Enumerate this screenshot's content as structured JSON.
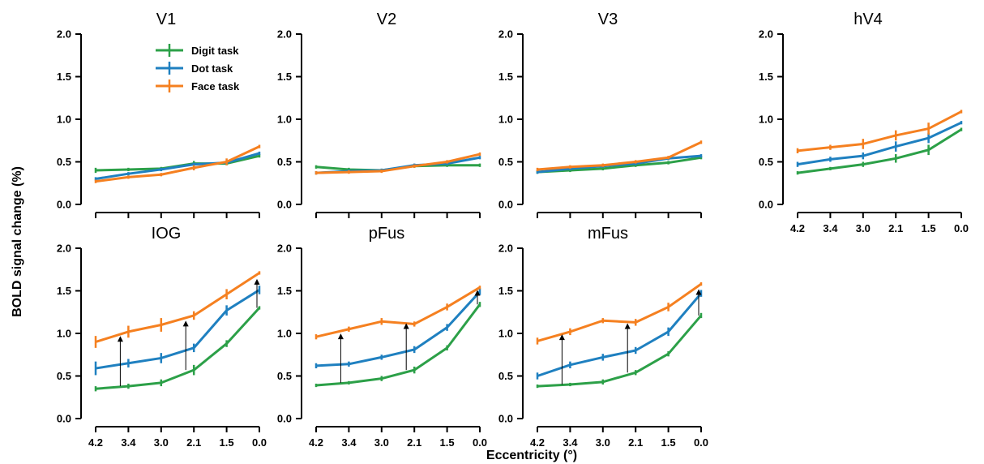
{
  "figure": {
    "ylabel": "BOLD signal change (%)",
    "xlabel": "Eccentricity (°)"
  },
  "legend": [
    {
      "name": "Digit task",
      "color": "#2ca048"
    },
    {
      "name": "Dot task",
      "color": "#1f80c0"
    },
    {
      "name": "Face task",
      "color": "#f58020"
    }
  ],
  "chart_data": [
    {
      "type": "line",
      "title": "V1",
      "categories": [
        "4.2",
        "3.4",
        "3.0",
        "2.1",
        "1.5",
        "0.0"
      ],
      "ylim": [
        0,
        2
      ],
      "yticks": [
        "0.0",
        "0.5",
        "1.0",
        "1.5",
        "2.0"
      ],
      "show_x_ticklabels": false,
      "legend": true,
      "series": [
        {
          "name": "Digit task",
          "color": "#2ca048",
          "values": [
            0.4,
            0.41,
            0.42,
            0.48,
            0.48,
            0.57
          ],
          "errors": [
            0.03,
            0.02,
            0.02,
            0.03,
            0.02,
            0.02
          ]
        },
        {
          "name": "Dot task",
          "color": "#1f80c0",
          "values": [
            0.3,
            0.36,
            0.41,
            0.47,
            0.49,
            0.6
          ],
          "errors": [
            0.02,
            0.02,
            0.02,
            0.02,
            0.02,
            0.02
          ]
        },
        {
          "name": "Face task",
          "color": "#f58020",
          "values": [
            0.27,
            0.32,
            0.35,
            0.43,
            0.5,
            0.68
          ],
          "errors": [
            0.02,
            0.02,
            0.02,
            0.03,
            0.04,
            0.02
          ]
        }
      ]
    },
    {
      "type": "line",
      "title": "V2",
      "categories": [
        "4.2",
        "3.4",
        "3.0",
        "2.1",
        "1.5",
        "0.0"
      ],
      "ylim": [
        0,
        2
      ],
      "yticks": [
        "0.0",
        "0.5",
        "1.0",
        "1.5",
        "2.0"
      ],
      "show_x_ticklabels": false,
      "legend": false,
      "series": [
        {
          "name": "Digit task",
          "color": "#2ca048",
          "values": [
            0.44,
            0.41,
            0.4,
            0.45,
            0.46,
            0.46
          ],
          "errors": [
            0.02,
            0.02,
            0.02,
            0.02,
            0.02,
            0.02
          ]
        },
        {
          "name": "Dot task",
          "color": "#1f80c0",
          "values": [
            0.37,
            0.39,
            0.4,
            0.46,
            0.48,
            0.55
          ],
          "errors": [
            0.02,
            0.02,
            0.02,
            0.02,
            0.02,
            0.02
          ]
        },
        {
          "name": "Face task",
          "color": "#f58020",
          "values": [
            0.37,
            0.38,
            0.39,
            0.45,
            0.5,
            0.59
          ],
          "errors": [
            0.02,
            0.02,
            0.02,
            0.02,
            0.02,
            0.02
          ]
        }
      ]
    },
    {
      "type": "line",
      "title": "V3",
      "categories": [
        "4.2",
        "3.4",
        "3.0",
        "2.1",
        "1.5",
        "0.0"
      ],
      "ylim": [
        0,
        2
      ],
      "yticks": [
        "0.0",
        "0.5",
        "1.0",
        "1.5",
        "2.0"
      ],
      "show_x_ticklabels": false,
      "legend": false,
      "series": [
        {
          "name": "Digit task",
          "color": "#2ca048",
          "values": [
            0.38,
            0.4,
            0.42,
            0.46,
            0.49,
            0.55
          ],
          "errors": [
            0.02,
            0.02,
            0.02,
            0.02,
            0.02,
            0.02
          ]
        },
        {
          "name": "Dot task",
          "color": "#1f80c0",
          "values": [
            0.38,
            0.42,
            0.45,
            0.48,
            0.54,
            0.57
          ],
          "errors": [
            0.02,
            0.02,
            0.02,
            0.02,
            0.02,
            0.02
          ]
        },
        {
          "name": "Face task",
          "color": "#f58020",
          "values": [
            0.41,
            0.44,
            0.46,
            0.5,
            0.55,
            0.73
          ],
          "errors": [
            0.02,
            0.02,
            0.02,
            0.02,
            0.02,
            0.02
          ]
        }
      ]
    },
    {
      "type": "line",
      "title": "hV4",
      "categories": [
        "4.2",
        "3.4",
        "3.0",
        "2.1",
        "1.5",
        "0.0"
      ],
      "ylim": [
        0,
        2
      ],
      "yticks": [
        "0.0",
        "0.5",
        "1.0",
        "1.5",
        "2.0"
      ],
      "show_x_ticklabels": true,
      "legend": false,
      "series": [
        {
          "name": "Digit task",
          "color": "#2ca048",
          "values": [
            0.37,
            0.42,
            0.47,
            0.54,
            0.64,
            0.88
          ],
          "errors": [
            0.02,
            0.02,
            0.03,
            0.05,
            0.06,
            0.02
          ]
        },
        {
          "name": "Dot task",
          "color": "#1f80c0",
          "values": [
            0.47,
            0.53,
            0.57,
            0.68,
            0.78,
            0.96
          ],
          "errors": [
            0.03,
            0.03,
            0.04,
            0.06,
            0.06,
            0.02
          ]
        },
        {
          "name": "Face task",
          "color": "#f58020",
          "values": [
            0.63,
            0.67,
            0.71,
            0.81,
            0.89,
            1.09
          ],
          "errors": [
            0.03,
            0.03,
            0.06,
            0.06,
            0.07,
            0.02
          ]
        }
      ]
    },
    {
      "type": "line",
      "title": "IOG",
      "categories": [
        "4.2",
        "3.4",
        "3.0",
        "2.1",
        "1.5",
        "0.0"
      ],
      "ylim": [
        0,
        2
      ],
      "yticks": [
        "0.0",
        "0.5",
        "1.0",
        "1.5",
        "2.0"
      ],
      "show_x_ticklabels": true,
      "legend": false,
      "series": [
        {
          "name": "Digit task",
          "color": "#2ca048",
          "values": [
            0.35,
            0.38,
            0.42,
            0.57,
            0.88,
            1.3
          ],
          "errors": [
            0.03,
            0.03,
            0.04,
            0.06,
            0.04,
            0.02
          ]
        },
        {
          "name": "Dot task",
          "color": "#1f80c0",
          "values": [
            0.59,
            0.65,
            0.71,
            0.83,
            1.27,
            1.51
          ],
          "errors": [
            0.08,
            0.05,
            0.06,
            0.05,
            0.06,
            0.05
          ]
        },
        {
          "name": "Face task",
          "color": "#f58020",
          "values": [
            0.9,
            1.02,
            1.1,
            1.21,
            1.46,
            1.71
          ],
          "errors": [
            0.07,
            0.07,
            0.08,
            0.05,
            0.06,
            0.02
          ]
        }
      ],
      "arrows": [
        {
          "x": "3.4",
          "from": 0.38,
          "to": 0.95
        },
        {
          "x": "2.1",
          "from": 0.57,
          "to": 1.13
        },
        {
          "x": "0.0",
          "from": 1.3,
          "to": 1.62
        }
      ]
    },
    {
      "type": "line",
      "title": "pFus",
      "categories": [
        "4.2",
        "3.4",
        "3.0",
        "2.1",
        "1.5",
        "0.0"
      ],
      "ylim": [
        0,
        2
      ],
      "yticks": [
        "0.0",
        "0.5",
        "1.0",
        "1.5",
        "2.0"
      ],
      "show_x_ticklabels": true,
      "legend": false,
      "series": [
        {
          "name": "Digit task",
          "color": "#2ca048",
          "values": [
            0.39,
            0.42,
            0.47,
            0.57,
            0.83,
            1.34
          ],
          "errors": [
            0.02,
            0.02,
            0.03,
            0.04,
            0.03,
            0.03
          ]
        },
        {
          "name": "Dot task",
          "color": "#1f80c0",
          "values": [
            0.62,
            0.64,
            0.72,
            0.81,
            1.07,
            1.49
          ],
          "errors": [
            0.03,
            0.03,
            0.03,
            0.04,
            0.04,
            0.04
          ]
        },
        {
          "name": "Face task",
          "color": "#f58020",
          "values": [
            0.96,
            1.05,
            1.14,
            1.11,
            1.31,
            1.54
          ],
          "errors": [
            0.03,
            0.03,
            0.04,
            0.03,
            0.04,
            0.02
          ]
        }
      ],
      "arrows": [
        {
          "x": "3.4",
          "from": 0.42,
          "to": 0.98
        },
        {
          "x": "2.1",
          "from": 0.57,
          "to": 1.1
        },
        {
          "x": "0.0",
          "from": 1.34,
          "to": 1.49
        }
      ]
    },
    {
      "type": "line",
      "title": "mFus",
      "categories": [
        "4.2",
        "3.4",
        "3.0",
        "2.1",
        "1.5",
        "0.0"
      ],
      "ylim": [
        0,
        2
      ],
      "yticks": [
        "0.0",
        "0.5",
        "1.0",
        "1.5",
        "2.0"
      ],
      "show_x_ticklabels": true,
      "legend": false,
      "series": [
        {
          "name": "Digit task",
          "color": "#2ca048",
          "values": [
            0.38,
            0.4,
            0.43,
            0.54,
            0.76,
            1.21
          ],
          "errors": [
            0.02,
            0.02,
            0.03,
            0.03,
            0.03,
            0.03
          ]
        },
        {
          "name": "Dot task",
          "color": "#1f80c0",
          "values": [
            0.5,
            0.63,
            0.72,
            0.8,
            1.02,
            1.47
          ],
          "errors": [
            0.04,
            0.04,
            0.04,
            0.04,
            0.05,
            0.04
          ]
        },
        {
          "name": "Face task",
          "color": "#f58020",
          "values": [
            0.91,
            1.02,
            1.15,
            1.13,
            1.31,
            1.58
          ],
          "errors": [
            0.04,
            0.04,
            0.03,
            0.04,
            0.05,
            0.02
          ]
        }
      ],
      "arrows": [
        {
          "x": "3.4",
          "from": 0.4,
          "to": 0.97
        },
        {
          "x": "2.1",
          "from": 0.54,
          "to": 1.1
        },
        {
          "x": "0.0",
          "from": 1.21,
          "to": 1.5
        }
      ]
    }
  ]
}
